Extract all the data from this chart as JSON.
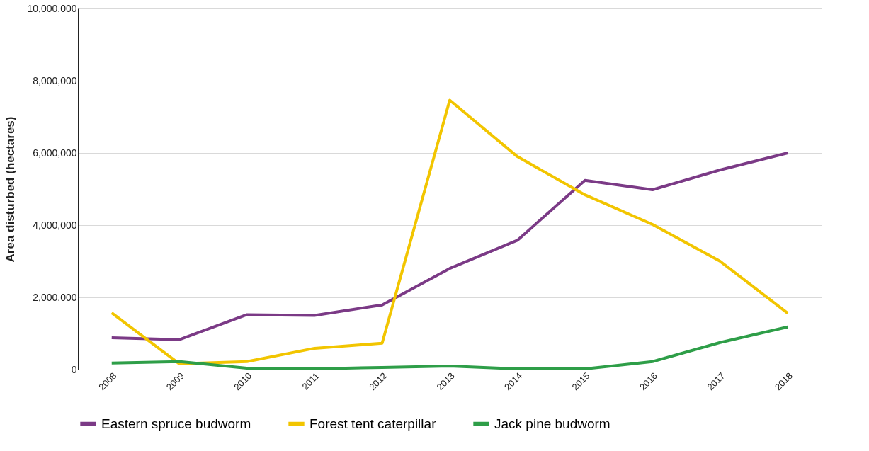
{
  "chart_data": {
    "type": "line",
    "ylabel": "Area disturbed (hectares)",
    "categories": [
      "2008",
      "2009",
      "2010",
      "2011",
      "2012",
      "2013",
      "2014",
      "2015",
      "2016",
      "2017",
      "2018"
    ],
    "series": [
      {
        "name": "Eastern spruce budworm",
        "color": "#7b3a86",
        "values": [
          880000,
          830000,
          1520000,
          1500000,
          1790000,
          2800000,
          3580000,
          5240000,
          4980000,
          5530000,
          6000000
        ]
      },
      {
        "name": "Forest tent caterpillar",
        "color": "#f2c500",
        "values": [
          1570000,
          160000,
          220000,
          590000,
          730000,
          7460000,
          5900000,
          4840000,
          4020000,
          3000000,
          1560000
        ]
      },
      {
        "name": "Jack pine budworm",
        "color": "#2e9e48",
        "values": [
          180000,
          220000,
          40000,
          20000,
          60000,
          100000,
          20000,
          20000,
          220000,
          750000,
          1180000
        ]
      }
    ],
    "ylim": [
      0,
      10000000
    ],
    "yticks": [
      0,
      {
        "value": 2000000,
        "label": "2,000,000"
      },
      {
        "value": 4000000,
        "label": "4,000,000"
      },
      {
        "value": 6000000,
        "label": "6,000,000"
      },
      {
        "value": 8000000,
        "label": "8,000,000"
      },
      {
        "value": 10000000,
        "label": "10,000,000"
      }
    ],
    "grid": "y",
    "legend": "bottom",
    "marker": "none",
    "line_style": "solid"
  }
}
